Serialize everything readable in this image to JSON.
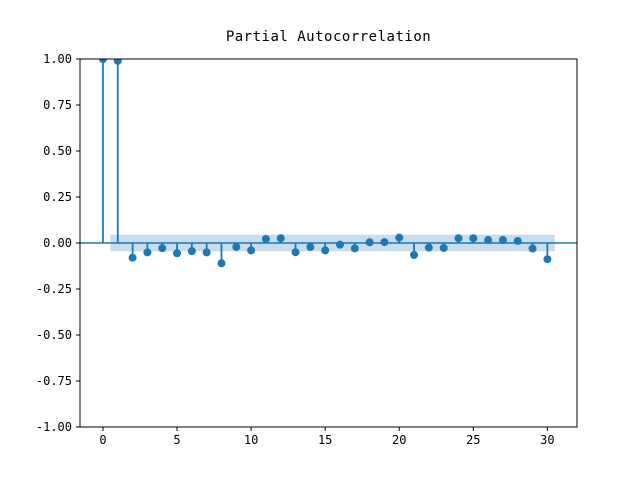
{
  "figure": {
    "title": "Partial Autocorrelation"
  },
  "chart_data": {
    "type": "stem",
    "title": "Partial Autocorrelation",
    "xlabel": "",
    "ylabel": "",
    "x": [
      0,
      1,
      2,
      3,
      4,
      5,
      6,
      7,
      8,
      9,
      10,
      11,
      12,
      13,
      14,
      15,
      16,
      17,
      18,
      19,
      20,
      21,
      22,
      23,
      24,
      25,
      26,
      27,
      28,
      29,
      30
    ],
    "values": [
      1.0,
      0.99,
      -0.08,
      -0.051,
      -0.028,
      -0.056,
      -0.044,
      -0.051,
      -0.11,
      -0.022,
      -0.04,
      0.022,
      0.026,
      -0.05,
      -0.022,
      -0.04,
      -0.009,
      -0.029,
      0.004,
      0.005,
      0.029,
      -0.065,
      -0.025,
      -0.027,
      0.026,
      0.026,
      0.016,
      0.016,
      0.011,
      -0.03,
      -0.088
    ],
    "xticks": {
      "values": [
        0,
        5,
        10,
        15,
        20,
        25,
        30
      ],
      "labels": [
        "0",
        "5",
        "10",
        "15",
        "20",
        "25",
        "30"
      ]
    },
    "yticks": {
      "values": [
        1.0,
        0.75,
        0.5,
        0.25,
        0.0,
        -0.25,
        -0.5,
        -0.75,
        -1.0
      ],
      "labels": [
        "1.00",
        "0.75",
        "0.50",
        "0.25",
        "0.00",
        "-0.25",
        "-0.50",
        "-0.75",
        "-1.00"
      ]
    },
    "xlim": [
      -1.55,
      32.0
    ],
    "ylim": [
      -1.0,
      1.0
    ],
    "confidence_band": {
      "low": -0.045,
      "high": 0.045,
      "x_start": 0.5,
      "x_end": 30.5
    },
    "zero_line": 0.0,
    "grid": false,
    "legend": null,
    "colors": {
      "stem": "#1f77b4",
      "marker": "#1f77b4",
      "zero_line": "#1f77b4",
      "band_fill": "#1f77b4",
      "band_opacity": 0.25,
      "axis": "#000000",
      "background": "#ffffff"
    }
  }
}
